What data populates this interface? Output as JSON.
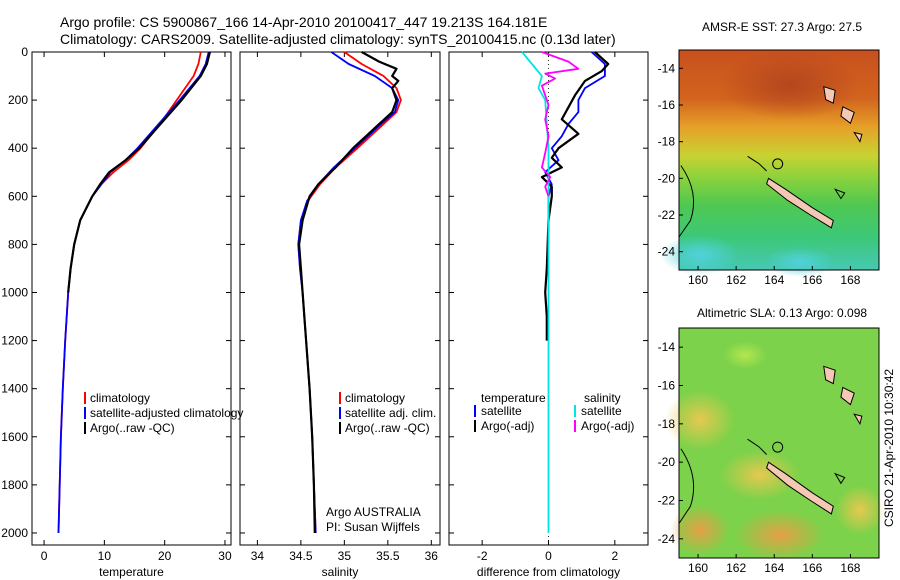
{
  "header": {
    "line1": "Argo profile: CS 5900867_166 14-Apr-2010 20100417_447 19.213S 164.181E",
    "line2": "Climatology: CARS2009. Satellite-adjusted climatology: synTS_20100415.nc (0.13d later)"
  },
  "colors": {
    "climatology": "#ff0000",
    "satellite": "#0000ff",
    "argo": "#000000",
    "sal_satellite": "#00e5e5",
    "sal_argo": "#ff00ff"
  },
  "chart_data": [
    {
      "type": "line",
      "id": "temperature",
      "xlabel": "temperature",
      "ylabel": "",
      "xlim": [
        -2,
        31
      ],
      "ylim": [
        2050,
        0
      ],
      "xticks": [
        0,
        10,
        20,
        30
      ],
      "yticks": [
        0,
        200,
        400,
        600,
        800,
        1000,
        1200,
        1400,
        1600,
        1800,
        2000
      ],
      "legend": {
        "entries": [
          "climatology",
          "satellite-adjusted climatology",
          "Argo(..raw -QC)"
        ],
        "position": "lower-right"
      },
      "series": [
        {
          "name": "climatology",
          "color": "#ff0000",
          "depth": [
            0,
            50,
            100,
            200,
            300,
            400,
            450,
            500,
            550,
            600,
            700,
            800,
            900,
            1000,
            1200,
            1400,
            1600,
            1800,
            2000
          ],
          "values": [
            26.0,
            25.6,
            24.8,
            22.0,
            19.2,
            16.0,
            14.0,
            11.5,
            9.5,
            8.0,
            6.0,
            5.0,
            4.4,
            4.0,
            3.5,
            3.1,
            2.8,
            2.6,
            2.4
          ]
        },
        {
          "name": "satellite-adjusted climatology",
          "color": "#0000ff",
          "depth": [
            0,
            50,
            100,
            200,
            300,
            400,
            450,
            500,
            550,
            600,
            700,
            800,
            900,
            1000,
            1200,
            1400,
            1600,
            1800,
            2000
          ],
          "values": [
            27.3,
            26.8,
            25.8,
            22.5,
            19.0,
            15.5,
            13.5,
            11.0,
            9.5,
            8.0,
            6.0,
            5.0,
            4.4,
            4.0,
            3.5,
            3.1,
            2.8,
            2.6,
            2.4
          ]
        },
        {
          "name": "Argo(..raw -QC)",
          "color": "#000000",
          "depth": [
            0,
            50,
            100,
            200,
            300,
            400,
            450,
            500,
            550,
            600,
            700,
            800,
            900,
            1000
          ],
          "values": [
            27.5,
            27.0,
            26.0,
            22.8,
            19.3,
            15.8,
            13.5,
            10.8,
            9.3,
            8.0,
            6.0,
            5.0,
            4.4,
            4.0
          ]
        }
      ]
    },
    {
      "type": "line",
      "id": "salinity",
      "xlabel": "salinity",
      "xlim": [
        33.8,
        36.1
      ],
      "ylim": [
        2050,
        0
      ],
      "xticks": [
        34,
        34.5,
        35,
        35.5,
        36
      ],
      "legend": {
        "entries": [
          "climatology",
          "satellite adj. clim.",
          "Argo(..raw -QC)"
        ],
        "position": "lower-right"
      },
      "annotation": {
        "line1": "Argo AUSTRALIA",
        "line2": "PI: Susan Wijffels"
      },
      "series": [
        {
          "name": "climatology",
          "color": "#ff0000",
          "depth": [
            0,
            50,
            100,
            150,
            200,
            250,
            300,
            400,
            480,
            550,
            620,
            700,
            800,
            900,
            1000,
            1100,
            1200,
            1400,
            1600,
            1800,
            2000
          ],
          "values": [
            35.0,
            35.2,
            35.45,
            35.6,
            35.65,
            35.6,
            35.45,
            35.15,
            34.9,
            34.72,
            34.58,
            34.5,
            34.47,
            34.49,
            34.52,
            34.54,
            34.56,
            34.6,
            34.63,
            34.65,
            34.67
          ]
        },
        {
          "name": "satellite adj. clim.",
          "color": "#0000ff",
          "depth": [
            0,
            50,
            100,
            150,
            200,
            250,
            300,
            400,
            480,
            550,
            620,
            700,
            800,
            900,
            1000,
            1100,
            1200,
            1400,
            1600,
            1800,
            2000
          ],
          "values": [
            34.85,
            35.05,
            35.35,
            35.55,
            35.62,
            35.58,
            35.42,
            35.12,
            34.88,
            34.7,
            34.57,
            34.5,
            34.47,
            34.49,
            34.52,
            34.54,
            34.56,
            34.6,
            34.63,
            34.65,
            34.67
          ]
        },
        {
          "name": "Argo(..raw -QC)",
          "color": "#000000",
          "depth": [
            0,
            40,
            70,
            100,
            120,
            150,
            200,
            250,
            300,
            400,
            480,
            500,
            550,
            600,
            700,
            800,
            900,
            1000,
            1200,
            1400,
            1600,
            1800,
            2000
          ],
          "values": [
            35.2,
            35.4,
            35.6,
            35.55,
            35.62,
            35.55,
            35.6,
            35.55,
            35.4,
            35.1,
            34.9,
            34.84,
            34.7,
            34.6,
            34.52,
            34.48,
            34.5,
            34.52,
            34.56,
            34.6,
            34.63,
            34.65,
            34.66
          ]
        }
      ]
    },
    {
      "type": "line",
      "id": "difference",
      "xlabel": "difference from climatology",
      "xlim": [
        -3,
        3
      ],
      "ylim": [
        2050,
        0
      ],
      "xticks": [
        -2,
        0,
        2
      ],
      "legend": {
        "temp_title": "temperature",
        "sal_title": "salinity",
        "temp_entries": [
          "satellite",
          "Argo(-adj)"
        ],
        "sal_entries": [
          "satellite",
          "Argo(-adj)"
        ],
        "position": "lower"
      },
      "series": [
        {
          "name": "temperature satellite",
          "color": "#0000ff",
          "depth": [
            0,
            50,
            100,
            150,
            200,
            250,
            300,
            350,
            400,
            450,
            500,
            550,
            600,
            650,
            700,
            800
          ],
          "values": [
            1.3,
            1.7,
            1.7,
            1.1,
            0.9,
            0.9,
            0.6,
            0.4,
            0.1,
            0.3,
            -0.1,
            0.1,
            0.0,
            0.0,
            0.0,
            0.0
          ]
        },
        {
          "name": "temperature Argo(-adj)",
          "color": "#000000",
          "depth": [
            0,
            50,
            80,
            120,
            180,
            230,
            280,
            340,
            400,
            440,
            480,
            520,
            560,
            600,
            700,
            900,
            1000,
            1100,
            1200
          ],
          "values": [
            1.4,
            1.8,
            1.6,
            1.1,
            0.8,
            0.6,
            0.4,
            0.9,
            0.3,
            0.1,
            0.4,
            -0.2,
            0.1,
            0.1,
            0.0,
            -0.05,
            -0.1,
            -0.05,
            -0.05
          ]
        },
        {
          "name": "salinity satellite",
          "color": "#00e5e5",
          "depth": [
            0,
            50,
            100,
            150,
            200,
            300,
            400,
            500,
            600,
            700,
            800,
            1000,
            1200,
            1400,
            1600,
            1800,
            2000
          ],
          "values": [
            -0.8,
            -0.5,
            -0.2,
            -0.3,
            -0.1,
            -0.05,
            0.0,
            0.0,
            0.0,
            0.0,
            0.0,
            0.0,
            0.0,
            0.0,
            0.0,
            0.0,
            0.0
          ]
        },
        {
          "name": "salinity Argo(-adj)",
          "color": "#ff00ff",
          "depth": [
            0,
            40,
            70,
            90,
            110,
            140,
            180,
            220,
            280,
            350,
            420,
            480,
            520,
            560,
            600
          ],
          "values": [
            -0.2,
            0.6,
            0.9,
            -0.1,
            0.2,
            -0.2,
            -0.1,
            0.0,
            -0.1,
            0.0,
            -0.1,
            -0.2,
            0.05,
            -0.1,
            0.0
          ]
        }
      ]
    },
    {
      "type": "heatmap",
      "id": "sst-map",
      "title": "AMSR-E SST: 27.3  Argo: 27.5",
      "xticks": [
        160,
        162,
        164,
        166,
        168
      ],
      "yticks": [
        -14,
        -16,
        -18,
        -20,
        -22,
        -24
      ],
      "xlim": [
        159,
        169.5
      ],
      "ylim": [
        -25,
        -13
      ],
      "station": {
        "lon": 164.181,
        "lat": -19.213
      }
    },
    {
      "type": "heatmap",
      "id": "sla-map",
      "title": "Altimetric SLA: 0.13  Argo: 0.098",
      "xticks": [
        160,
        162,
        164,
        166,
        168
      ],
      "yticks": [
        -14,
        -16,
        -18,
        -20,
        -22,
        -24
      ],
      "xlim": [
        159,
        169.5
      ],
      "ylim": [
        -25,
        -13
      ],
      "station": {
        "lon": 164.181,
        "lat": -19.213
      }
    }
  ],
  "footer": {
    "stamp": "CSIRO 21-Apr-2010 10:30:42"
  }
}
